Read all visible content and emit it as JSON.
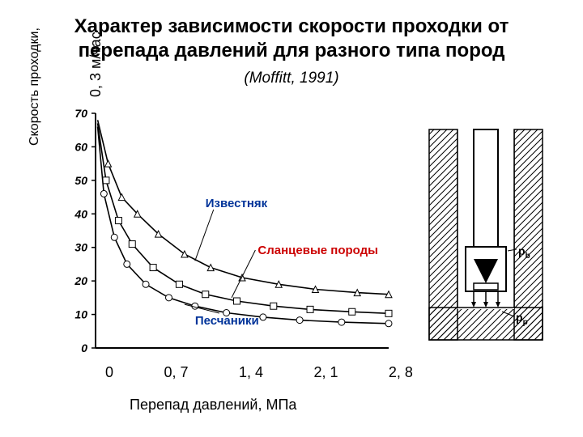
{
  "title_line1": "Характер зависимости скорости проходки от",
  "title_line2": "перепада давлений для разного типа  пород",
  "citation": "(Moffitt, 1991)",
  "ylabel_main": "Скорость проходки,",
  "ylabel_unit": "0, 3 м/час",
  "xlabel": "Перепад давлений, МПа",
  "chart": {
    "type": "line",
    "xlim": [
      0,
      2.8
    ],
    "ylim": [
      0,
      70
    ],
    "ytick_step": 10,
    "yticks": [
      0,
      10,
      20,
      30,
      40,
      50,
      60,
      70
    ],
    "xticks_labels": [
      "0",
      "0, 7",
      "1, 4",
      "2, 1",
      "2, 8"
    ],
    "line_color": "#000000",
    "line_width": 1.6,
    "marker_size": 4,
    "background_color": "#ffffff",
    "axis_color": "#000000",
    "series": [
      {
        "name": "Известняк",
        "label_color": "#003399",
        "marker": "triangle",
        "points": [
          [
            0.02,
            68
          ],
          [
            0.12,
            55
          ],
          [
            0.25,
            45
          ],
          [
            0.4,
            40
          ],
          [
            0.6,
            34
          ],
          [
            0.85,
            28
          ],
          [
            1.1,
            24
          ],
          [
            1.4,
            21
          ],
          [
            1.75,
            19
          ],
          [
            2.1,
            17.5
          ],
          [
            2.5,
            16.5
          ],
          [
            2.8,
            16
          ]
        ]
      },
      {
        "name": "Сланцевые породы",
        "label_color": "#cc0000",
        "marker": "square",
        "points": [
          [
            0.02,
            67
          ],
          [
            0.1,
            50
          ],
          [
            0.22,
            38
          ],
          [
            0.35,
            31
          ],
          [
            0.55,
            24
          ],
          [
            0.8,
            19
          ],
          [
            1.05,
            16
          ],
          [
            1.35,
            14
          ],
          [
            1.7,
            12.5
          ],
          [
            2.05,
            11.5
          ],
          [
            2.45,
            10.8
          ],
          [
            2.8,
            10.3
          ]
        ]
      },
      {
        "name": "Песчаники",
        "label_color": "#003399",
        "marker": "circle",
        "points": [
          [
            0.02,
            66
          ],
          [
            0.08,
            46
          ],
          [
            0.18,
            33
          ],
          [
            0.3,
            25
          ],
          [
            0.48,
            19
          ],
          [
            0.7,
            15
          ],
          [
            0.95,
            12.5
          ],
          [
            1.25,
            10.5
          ],
          [
            1.6,
            9.2
          ],
          [
            1.95,
            8.3
          ],
          [
            2.35,
            7.7
          ],
          [
            2.8,
            7.3
          ]
        ]
      }
    ],
    "label_positions": {
      "Известняк": [
        1.05,
        42
      ],
      "Сланцевые породы": [
        1.55,
        28
      ],
      "Песчаники": [
        0.95,
        7
      ]
    }
  },
  "diagram": {
    "hatch_color": "#000000",
    "fill_color": "#ffffff",
    "labels": {
      "pb": "p",
      "pb_sub": "b",
      "pp": "p",
      "pp_sub": "p"
    }
  },
  "fonts": {
    "title_size": 24,
    "axis_label_size": 18,
    "citation_size": 19
  },
  "colors": {
    "bg": "#ffffff",
    "text": "#000000"
  }
}
